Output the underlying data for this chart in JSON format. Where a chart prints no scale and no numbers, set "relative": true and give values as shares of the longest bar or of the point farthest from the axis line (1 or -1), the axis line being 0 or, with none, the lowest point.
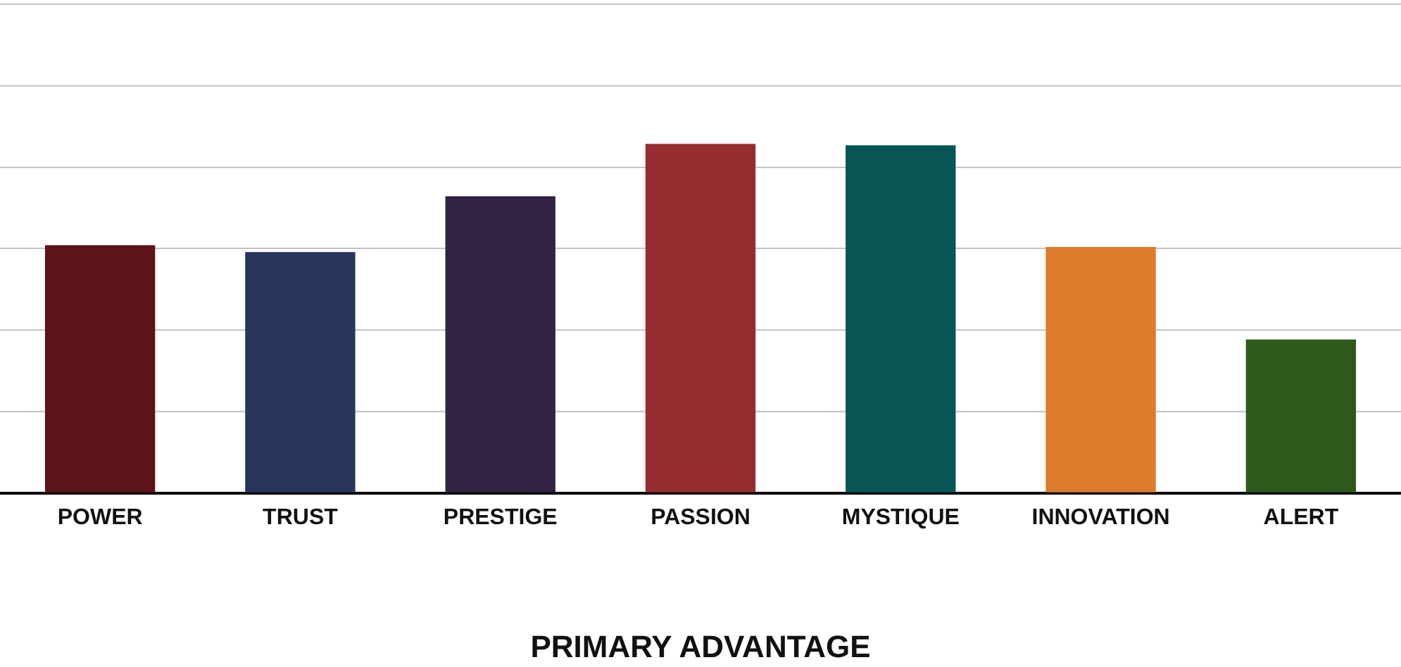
{
  "chart_data": {
    "type": "bar",
    "relative": true,
    "xlabel": "PRIMARY ADVANTAGE",
    "grid": "y",
    "legend": false,
    "categories": [
      "POWER",
      "TRUST",
      "PRESTIGE",
      "PASSION",
      "MYSTIQUE",
      "INNOVATION",
      "ALERT"
    ],
    "values": [
      0.71,
      0.69,
      0.85,
      1,
      0.996,
      0.705,
      0.44
    ],
    "colors": [
      "#5c1418",
      "#27345c",
      "#322244",
      "#962c2f",
      "#085555",
      "#dd7b2c",
      "#2d5a1c"
    ]
  }
}
